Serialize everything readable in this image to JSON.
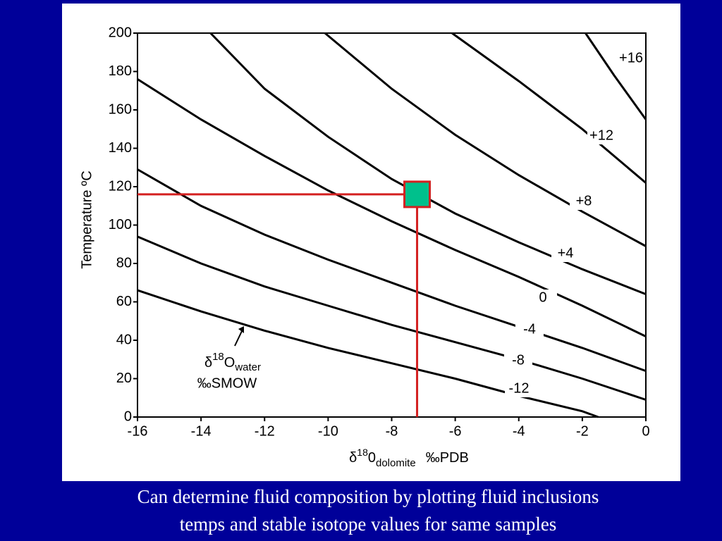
{
  "chart_data": {
    "type": "line",
    "ylabel": "Temperature ºC",
    "xlabel": {
      "delta": "δ",
      "sup": "18",
      "base": "0",
      "sub": "dolomite",
      "unit": "‰PDB"
    },
    "annotation": {
      "delta": "δ",
      "sup": "18",
      "base": "O",
      "sub": "water",
      "unit": "‰SMOW"
    },
    "caption": [
      "Can determine fluid composition by plotting fluid inclusions",
      "temps and stable isotope values for same samples"
    ],
    "xlim": [
      -16,
      0
    ],
    "ylim": [
      0,
      200
    ],
    "xticks": [
      -16,
      -14,
      -12,
      -10,
      -8,
      -6,
      -4,
      -2,
      0
    ],
    "yticks": [
      0,
      20,
      40,
      60,
      80,
      100,
      120,
      140,
      160,
      180,
      200
    ],
    "series": [
      {
        "name": "-12",
        "color": "#000000",
        "x": [
          -16,
          -14,
          -12,
          -10,
          -8,
          -6,
          -4,
          -2,
          -1.5
        ],
        "values": [
          66,
          55,
          45,
          36,
          28,
          20,
          11,
          3,
          0
        ]
      },
      {
        "name": "-8",
        "color": "#000000",
        "x": [
          -16,
          -14,
          -12,
          -10,
          -8,
          -6,
          -4,
          -2,
          0
        ],
        "values": [
          94,
          80,
          68,
          58,
          48,
          39,
          30,
          20,
          9
        ]
      },
      {
        "name": "-4",
        "color": "#000000",
        "x": [
          -16,
          -14,
          -12,
          -10,
          -8,
          -6,
          -4,
          -2,
          0
        ],
        "values": [
          129,
          110,
          95,
          82,
          70,
          58,
          47,
          36,
          24
        ]
      },
      {
        "name": "0",
        "color": "#000000",
        "x": [
          -16,
          -14,
          -12,
          -10,
          -8,
          -6,
          -4,
          -2,
          0
        ],
        "values": [
          176,
          155,
          136,
          118,
          102,
          87,
          73,
          58,
          42
        ]
      },
      {
        "name": "+4",
        "color": "#000000",
        "x": [
          -13.7,
          -12,
          -10,
          -8,
          -6,
          -4,
          -2,
          0
        ],
        "values": [
          200,
          171,
          146,
          124,
          106,
          91,
          77,
          64
        ]
      },
      {
        "name": "+8",
        "color": "#000000",
        "x": [
          -10.1,
          -8,
          -6,
          -4,
          -2,
          0
        ],
        "values": [
          200,
          171,
          147,
          126,
          107,
          89
        ]
      },
      {
        "name": "+12",
        "color": "#000000",
        "x": [
          -6.1,
          -4,
          -2,
          0
        ],
        "values": [
          200,
          175,
          150,
          122
        ]
      },
      {
        "name": "+16",
        "color": "#000000",
        "x": [
          -1.9,
          -1,
          0
        ],
        "values": [
          200,
          178,
          155
        ]
      }
    ],
    "marker": {
      "x": -7.2,
      "y": 116,
      "color": "#00c08c",
      "guide_color": "#d42020"
    }
  }
}
